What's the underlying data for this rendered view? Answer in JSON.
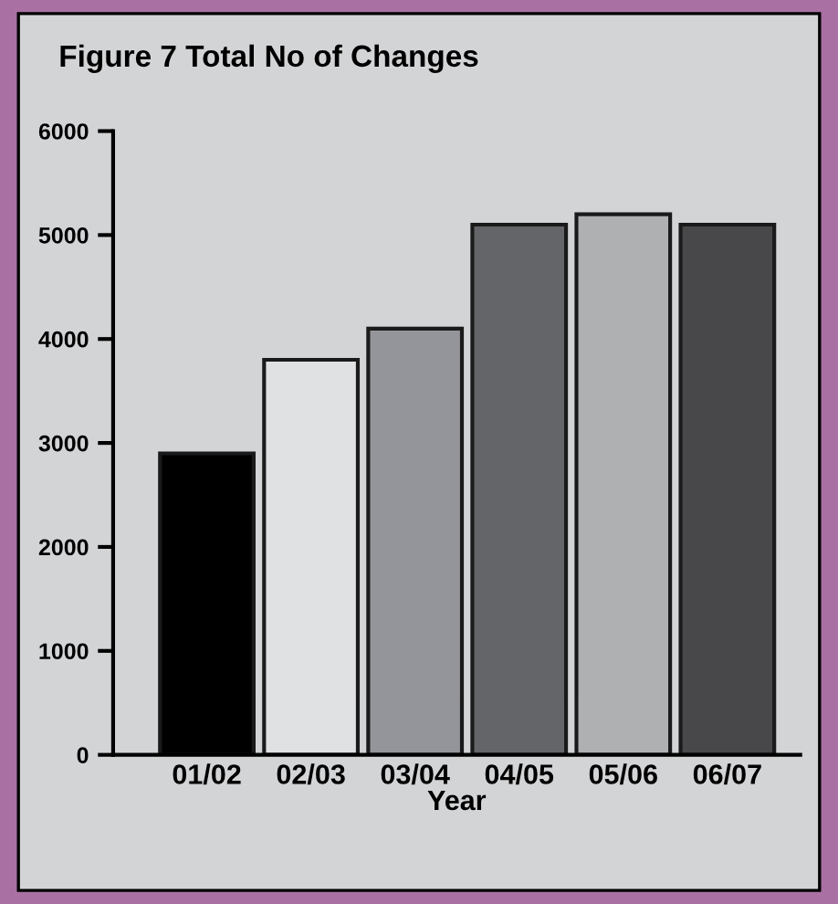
{
  "chart_data": {
    "type": "bar",
    "title": "Figure 7 Total No of Changes",
    "xlabel": "Year",
    "categories": [
      "01/02",
      "02/03",
      "03/04",
      "04/05",
      "05/06",
      "06/07"
    ],
    "values": [
      2900,
      3800,
      4100,
      5100,
      5200,
      5100
    ],
    "colors": [
      "#000000",
      "#e0e1e3",
      "#94959a",
      "#646568",
      "#afb0b2",
      "#48484a"
    ],
    "ylim": [
      0,
      6000
    ],
    "yticks": [
      0,
      1000,
      2000,
      3000,
      4000,
      5000,
      6000
    ],
    "grid": false,
    "legend": false
  }
}
